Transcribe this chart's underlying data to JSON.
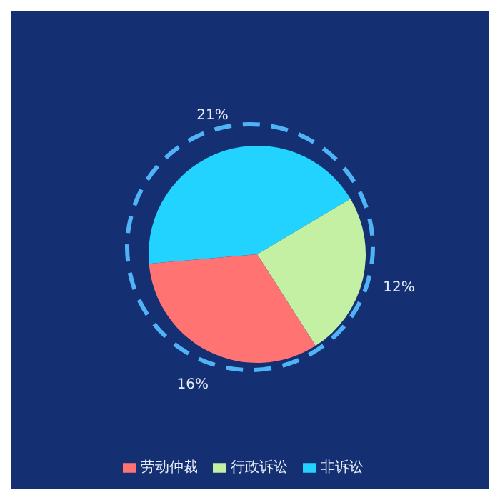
{
  "chart_data": {
    "type": "pie",
    "categories": [
      "非诉讼",
      "行政诉讼",
      "劳动仲裁"
    ],
    "values": [
      21,
      12,
      16
    ],
    "colors": [
      "#22d3ff",
      "#c3f0a3",
      "#ff7373"
    ],
    "value_labels": [
      "21%",
      "12%",
      "16%"
    ],
    "legend": "bottom"
  }
}
